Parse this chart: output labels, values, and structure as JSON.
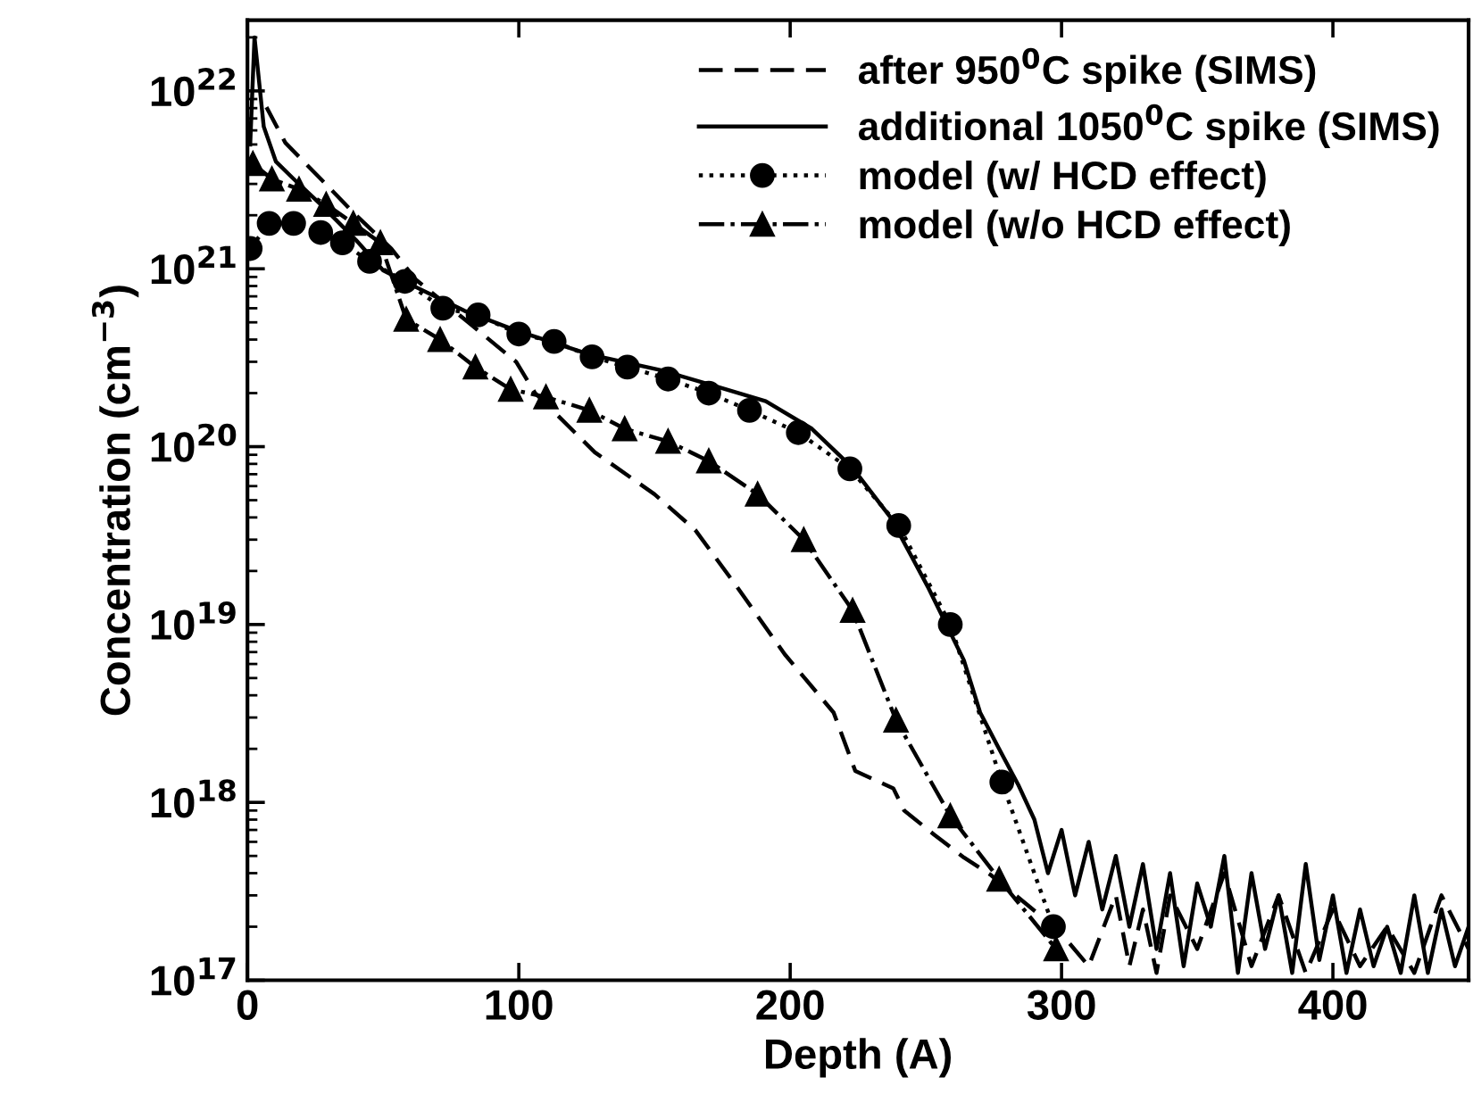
{
  "chart_data": {
    "type": "line",
    "xlabel": "Depth (A)",
    "ylabel": "Concentration (cm$^{−3}$)",
    "log": "y",
    "xlim": [
      0,
      450
    ],
    "xticks": [
      0,
      100,
      200,
      300,
      400
    ],
    "ylim": [
      1e+17,
      2.5e+22
    ],
    "yticks": [
      {
        "value": 1e+17,
        "label": "10$^{17}$"
      },
      {
        "value": 1e+18,
        "label": "10$^{18}$"
      },
      {
        "value": 1e+19,
        "label": "10$^{19}$"
      },
      {
        "value": 1e+20,
        "label": "10$^{20}$"
      },
      {
        "value": 1e+21,
        "label": "10$^{21}$"
      },
      {
        "value": 1e+22,
        "label": "10$^{22}$"
      }
    ],
    "grid": false,
    "legend": "top right",
    "series": [
      {
        "name": "after 950$^{0}$C spike (SIMS)",
        "color": "#000000",
        "line_style": "dashed",
        "marker": "none",
        "x": [
          7,
          14,
          27,
          40,
          53,
          62,
          80,
          99,
          106,
          128,
          150,
          165,
          180,
          198,
          216,
          224,
          238,
          242,
          253,
          264,
          274,
          299,
          310,
          320,
          325,
          330,
          335,
          340,
          350,
          360,
          370,
          380,
          390,
          400,
          410,
          420,
          430,
          440,
          450
        ],
        "values": [
          8.1e+21,
          5.1e+21,
          3.2e+21,
          2e+21,
          1.3e+21,
          8.7e+20,
          5.2e+20,
          3e+20,
          2e+20,
          9.3e+19,
          5.4e+19,
          3.4e+19,
          1.66e+19,
          6.8e+18,
          3.2e+18,
          1.5e+18,
          1.2e+18,
          9e+17,
          6.6e+17,
          4.9e+17,
          3.9e+17,
          1.9e+17,
          1.2e+17,
          3e+17,
          1.2e+17,
          2.5e+17,
          1.1e+17,
          3e+17,
          1.5e+17,
          4e+17,
          1.2e+17,
          3e+17,
          1.1e+17,
          2.5e+17,
          1.2e+17,
          2e+17,
          1.1e+17,
          3e+17,
          1.5e+17
        ]
      },
      {
        "name": "additional 1050$^{0}$C spike (SIMS)",
        "color": "#000000",
        "line_style": "solid",
        "marker": "none",
        "x": [
          1,
          2.6,
          6,
          10.5,
          17,
          27,
          40,
          50,
          62,
          80,
          99,
          126,
          152,
          172,
          191,
          208,
          223,
          237,
          251,
          264,
          270,
          277,
          284,
          290,
          295,
          300,
          305,
          310,
          315,
          320,
          325,
          330,
          335,
          340,
          345,
          350,
          355,
          360,
          365,
          370,
          375,
          380,
          385,
          390,
          395,
          400,
          405,
          410,
          415,
          420,
          425,
          430,
          435,
          440,
          445,
          450
        ],
        "values": [
          5e+21,
          2e+22,
          6.3e+21,
          4e+21,
          3.2e+21,
          2.3e+21,
          1.45e+21,
          9.8e+20,
          7.9e+20,
          5.8e+20,
          4.5e+20,
          3.3e+20,
          2.7e+20,
          2.2e+20,
          1.8e+20,
          1.26e+20,
          7.6e+19,
          4e+19,
          1.6e+19,
          6.3e+18,
          3.2e+18,
          2e+18,
          1.26e+18,
          8e+17,
          4e+17,
          7e+17,
          3e+17,
          6e+17,
          2.5e+17,
          5e+17,
          2e+17,
          4.5e+17,
          1.5e+17,
          4e+17,
          1.2e+17,
          3.5e+17,
          2e+17,
          5e+17,
          1.1e+17,
          4e+17,
          1.5e+17,
          3e+17,
          1.1e+17,
          4.5e+17,
          1.3e+17,
          3e+17,
          1.1e+17,
          2.5e+17,
          1.2e+17,
          2e+17,
          1.1e+17,
          3e+17,
          1.1e+17,
          2.5e+17,
          1.2e+17,
          2e+17
        ]
      },
      {
        "name": "model (w/ HCD effect)",
        "color": "#000000",
        "line_style": "dotted",
        "marker": "circle",
        "x": [
          1,
          8,
          17,
          27,
          35,
          45,
          58,
          72,
          85,
          100,
          113,
          127,
          140,
          155,
          170,
          185,
          203,
          222,
          240,
          259,
          278,
          297
        ],
        "values": [
          1.3e+21,
          1.8e+21,
          1.8e+21,
          1.6e+21,
          1.4e+21,
          1.1e+21,
          8.5e+20,
          6e+20,
          5.5e+20,
          4.3e+20,
          3.9e+20,
          3.2e+20,
          2.8e+20,
          2.4e+20,
          2e+20,
          1.6e+20,
          1.2e+20,
          7.5e+19,
          3.6e+19,
          1e+19,
          1.3e+18,
          2e+17
        ]
      },
      {
        "name": "model (w/o HCD effect)",
        "color": "#000000",
        "line_style": "dashdot",
        "marker": "triangle",
        "x": [
          2,
          9,
          19,
          29,
          39,
          49,
          58.5,
          71,
          84,
          97,
          110,
          126,
          139,
          155,
          170,
          188,
          205,
          223,
          239,
          259,
          277,
          298
        ],
        "values": [
          3.9e+21,
          3.2e+21,
          2.8e+21,
          2.3e+21,
          1.8e+21,
          1.4e+21,
          5.2e+20,
          4e+20,
          2.8e+20,
          2.1e+20,
          1.9e+20,
          1.6e+20,
          1.26e+20,
          1.07e+20,
          8.3e+19,
          5.4e+19,
          3e+19,
          1.2e+19,
          2.9e+18,
          8.4e+17,
          3.7e+17,
          1.5e+17
        ]
      }
    ]
  }
}
